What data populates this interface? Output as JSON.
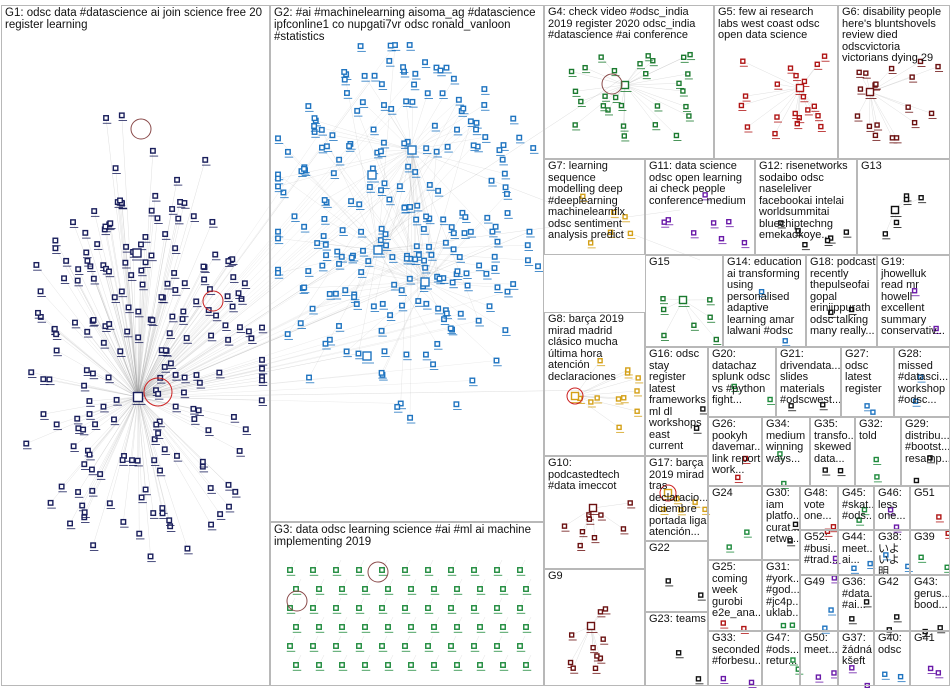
{
  "groups": [
    {
      "id": "G1",
      "text": "G1: odsc data #datascience ai join science free 20\nregister learning"
    },
    {
      "id": "G2",
      "text": "G2: #ai #machinelearning aisoma_ag #datascience\nipfconline1 co nupgati7vr odsc ronald_vanloon\n#statistics"
    },
    {
      "id": "G3",
      "text": "G3: data odsc learning science #ai #ml ai machine\nimplementing 2019"
    },
    {
      "id": "G4",
      "text": "G4: check video #odsc_india\n2019 register 2020 odsc_india\n#datascience #ai conference"
    },
    {
      "id": "G5",
      "text": "G5: few ai research\nlabs west coast odsc\nopen data science"
    },
    {
      "id": "G6",
      "text": "G6: disability people\nhere's bluntshovels\nreview died\nodscvictoria\nvictorians dying 29"
    },
    {
      "id": "G7",
      "text": "G7: learning\nsequence\nmodelling deep\n#deeplearning\nmachinelearnflx\nodsc sentiment\nanalysis predict"
    },
    {
      "id": "G11",
      "text": "G11: data science\nodsc open learning\nai check people\nconference medium"
    },
    {
      "id": "G12",
      "text": "G12: risenetworks\nsodaibo odsc\nnaseleliver\nfacebookai intelai\nworldsummitai\nbluechiptechng\nemekaokoye..."
    },
    {
      "id": "G13",
      "text": "G13"
    },
    {
      "id": "G15",
      "text": "G15"
    },
    {
      "id": "G14",
      "text": "G14: education\nai transforming\nusing\npersonalised\nadaptive\nlearning amar\nlalwani #odsc"
    },
    {
      "id": "G18",
      "text": "G18: podcast\nrecently\nthepulseofai\ngopal\nerinjippurath\nodsc talking\nmany really..."
    },
    {
      "id": "G19",
      "text": "G19:\njhowelluk\nread mr\nhowell\nexcellent\nsummary\nconservativ..."
    },
    {
      "id": "G8",
      "text": "G8: barça 2019\nmirad madrid\nclásico mucha\núltima hora\natención\ndeclaraciones"
    },
    {
      "id": "G16",
      "text": "G16: odsc\nstay register\nlatest\nframeworks\nml dl\nworkshops\neast current"
    },
    {
      "id": "G20",
      "text": "G20:\ndatachaz\nsplunk odsc\nvs #python\nfight..."
    },
    {
      "id": "G21",
      "text": "G21:\ndrivendata...\nslides\nmaterials\n#odscwest..."
    },
    {
      "id": "G27",
      "text": "G27:\nodsc\nlatest\nregister"
    },
    {
      "id": "G28",
      "text": "G28:\nmissed\n#datasci...\nworkshop\n#odsc..."
    },
    {
      "id": "G26",
      "text": "G26:\npookyh\ndavemar...\nlink report\nwork..."
    },
    {
      "id": "G34",
      "text": "G34:\nmedium\nwinning\nways..."
    },
    {
      "id": "G35",
      "text": "G35:\ntransfo...\nskewed\ndata..."
    },
    {
      "id": "G32",
      "text": "G32:\ntold"
    },
    {
      "id": "G29",
      "text": "G29:\ndistribu...\n#bootst...\nresamp..."
    },
    {
      "id": "G10",
      "text": "G10:\npodcastedtech\n#data imeccot"
    },
    {
      "id": "G17",
      "text": "G17: barça\n2019 mirad\ntras\ndeclaracio...\ndiciembre\nportada liga\natención..."
    },
    {
      "id": "G24",
      "text": "G24"
    },
    {
      "id": "G30",
      "text": "G30:\niam\nplatfo...\ncurat...\nretwe..."
    },
    {
      "id": "G48",
      "text": "G48:\nvote\none..."
    },
    {
      "id": "G45",
      "text": "G45:\n#skat...\n#ods..."
    },
    {
      "id": "G46",
      "text": "G46:\nless\none..."
    },
    {
      "id": "G51",
      "text": "G51"
    },
    {
      "id": "G52",
      "text": "G52:\n#busi...\n#trad..."
    },
    {
      "id": "G44",
      "text": "G44:\nmeet...\nai..."
    },
    {
      "id": "G38",
      "text": "G38:\nいよいよ\n明日..."
    },
    {
      "id": "G39",
      "text": "G39"
    },
    {
      "id": "G22",
      "text": "G22"
    },
    {
      "id": "G25",
      "text": "G25:\ncoming\nweek\ngurobi\ne2e_ana..."
    },
    {
      "id": "G31",
      "text": "G31:\n#york...\n#god...\n#jc4p...\nuklab..."
    },
    {
      "id": "G49",
      "text": "G49"
    },
    {
      "id": "G36",
      "text": "G36:\n#data...\n#ai..."
    },
    {
      "id": "G42",
      "text": "G42"
    },
    {
      "id": "G43",
      "text": "G43:\ngerus...\nbood..."
    },
    {
      "id": "G9",
      "text": "G9"
    },
    {
      "id": "G23",
      "text": "G23: teams"
    },
    {
      "id": "G33",
      "text": "G33:\nseconded\n#forbesu..."
    },
    {
      "id": "G47",
      "text": "G47:\n#ods...\nretur..."
    },
    {
      "id": "G50",
      "text": "G50:\nmeet..."
    },
    {
      "id": "G37",
      "text": "G37:\nžádná\nkšeft"
    },
    {
      "id": "G40",
      "text": "G40:\nodsc"
    },
    {
      "id": "G41",
      "text": "G41"
    }
  ],
  "colors": {
    "g1": "#1a1f5c",
    "g2": "#1f74c0",
    "g3": "#1e8a3c",
    "g4": "#1b7a2f",
    "g5": "#b01515",
    "g6": "#6b1111",
    "g7": "#d4a017",
    "g11": "#6a1aa8",
    "g12": "#111111",
    "g8": "#d4a017",
    "edge": "#9a9a9a",
    "hub_ring": "#cc2222",
    "border": "#b8b8b8"
  }
}
